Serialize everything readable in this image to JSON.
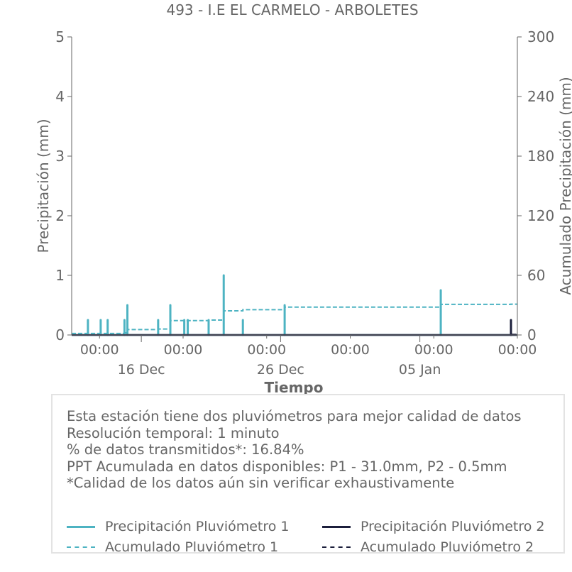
{
  "chart_data": {
    "type": "line",
    "title": "493 - I.E EL CARMELO - ARBOLETES",
    "xlabel": "Tiempo",
    "ylabel_left": "Precipitación (mm)",
    "ylabel_right": "Acumulado Precipitación (mm)",
    "x_range_days": [
      "2023-12-11",
      "2024-01-12"
    ],
    "ylim_left": [
      0,
      5
    ],
    "ylim_right": [
      0,
      300
    ],
    "yticks_left": [
      "0",
      "1",
      "2",
      "3",
      "4",
      "5"
    ],
    "yticks_right": [
      "0",
      "60",
      "120",
      "180",
      "240",
      "300"
    ],
    "xticks_major": [
      {
        "date": "2023-12-16",
        "label": "16 Dec"
      },
      {
        "date": "2023-12-26",
        "label": "26 Dec"
      },
      {
        "date": "2024-01-05",
        "label": "05 Jan"
      }
    ],
    "xticks_minor": [
      {
        "date": "2023-12-13",
        "label": "00:00"
      },
      {
        "date": "2023-12-19",
        "label": "00:00"
      },
      {
        "date": "2023-12-25",
        "label": "00:00"
      },
      {
        "date": "2023-12-31",
        "label": "00:00"
      },
      {
        "date": "2024-01-06",
        "label": "00:00"
      },
      {
        "date": "2024-01-12",
        "label": "00:00"
      }
    ],
    "series": [
      {
        "name": "Precipitación Pluviómetro 1",
        "axis": "left",
        "style": "solid",
        "color": "#4db3c2",
        "spikes": [
          {
            "date": "2023-12-12 04:00",
            "value": 0.25
          },
          {
            "date": "2023-12-13 02:00",
            "value": 0.25
          },
          {
            "date": "2023-12-13 14:00",
            "value": 0.25
          },
          {
            "date": "2023-12-14 19:00",
            "value": 0.25
          },
          {
            "date": "2023-12-15 00:00",
            "value": 0.5
          },
          {
            "date": "2023-12-17 05:00",
            "value": 0.25
          },
          {
            "date": "2023-12-18 02:00",
            "value": 0.5
          },
          {
            "date": "2023-12-19 02:00",
            "value": 0.25
          },
          {
            "date": "2023-12-19 08:00",
            "value": 0.25
          },
          {
            "date": "2023-12-20 20:00",
            "value": 0.25
          },
          {
            "date": "2023-12-21 22:00",
            "value": 1.0
          },
          {
            "date": "2023-12-23 07:00",
            "value": 0.25
          },
          {
            "date": "2023-12-26 07:00",
            "value": 0.5
          },
          {
            "date": "2024-01-06 12:00",
            "value": 0.75
          }
        ]
      },
      {
        "name": "Precipitación Pluviómetro 2",
        "axis": "left",
        "style": "solid",
        "color": "#1c1f3c",
        "spikes": [
          {
            "date": "2024-01-11 13:00",
            "value": 0.25
          }
        ]
      },
      {
        "name": "Acumulado Pluviómetro 1",
        "axis": "right",
        "style": "dashed",
        "color": "#4db3c2",
        "steps": [
          {
            "date": "2023-12-11 00:00",
            "value": 1.5
          },
          {
            "date": "2023-12-14 19:00",
            "value": 2.2
          },
          {
            "date": "2023-12-15 00:00",
            "value": 5.4
          },
          {
            "date": "2023-12-17 05:00",
            "value": 6.0
          },
          {
            "date": "2023-12-18 02:00",
            "value": 14.5
          },
          {
            "date": "2023-12-20 20:00",
            "value": 15.0
          },
          {
            "date": "2023-12-21 22:00",
            "value": 24.3
          },
          {
            "date": "2023-12-23 07:00",
            "value": 25.4
          },
          {
            "date": "2023-12-26 07:00",
            "value": 28.0
          },
          {
            "date": "2024-01-06 12:00",
            "value": 30.8
          },
          {
            "date": "2024-01-11 13:00",
            "value": 31.0
          }
        ]
      },
      {
        "name": "Acumulado Pluviómetro 2",
        "axis": "right",
        "style": "dashed",
        "color": "#1c1f3c",
        "steps": [
          {
            "date": "2023-12-11 00:00",
            "value": 0.0
          },
          {
            "date": "2024-01-11 13:00",
            "value": 0.5
          }
        ]
      }
    ]
  },
  "info": {
    "lines": [
      "Esta estación tiene dos pluviómetros para mejor calidad de datos",
      "Resolución temporal: 1 minuto",
      "% de datos transmitidos*: 16.84%",
      "PPT Acumulada en datos disponibles: P1 - 31.0mm, P2 - 0.5mm",
      "*Calidad de los datos aún sin verificar exhaustivamente"
    ]
  },
  "legend": [
    {
      "label": "Precipitación Pluviómetro 1",
      "color": "#4db3c2",
      "style": "solid"
    },
    {
      "label": "Precipitación Pluviómetro 2",
      "color": "#1c1f3c",
      "style": "solid"
    },
    {
      "label": "Acumulado Pluviómetro 1",
      "color": "#4db3c2",
      "style": "dashed"
    },
    {
      "label": "Acumulado Pluviómetro 2",
      "color": "#1c1f3c",
      "style": "dashed"
    }
  ]
}
